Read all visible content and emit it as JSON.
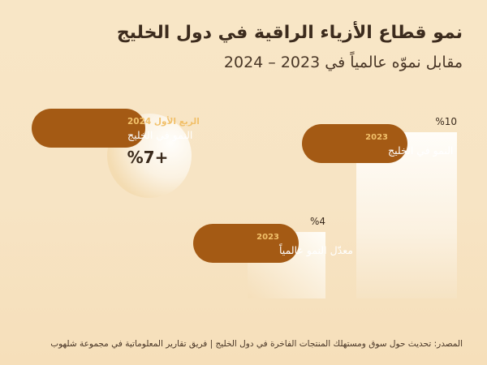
{
  "title": "نمو قطاع الأزياء الراقية في دول الخليج",
  "subtitle": "مقابل نموّه عالمياً في 2023 – 2024",
  "source": "المصدر: تحديث حول سوق ومستهلك المنتجات الفاخرة في دول الخليج | فريق تقارير المعلوماتية في مجموعة شلهوب",
  "chart_data": {
    "type": "bar",
    "title": "نمو قطاع الأزياء الراقية في دول الخليج",
    "subtitle": "مقابل نموّه عالمياً في 2023 – 2024",
    "unit": "%",
    "ylim": [
      0,
      10
    ],
    "bars": [
      {
        "period": "2023",
        "label": "النمو في الخليج",
        "value": 10,
        "value_label": "%10"
      },
      {
        "period": "2023",
        "label": "معدّل النمو عالمياً",
        "value": 4,
        "value_label": "%4"
      }
    ],
    "highlight": {
      "period": "الربع الأول 2024",
      "label": "النمو في الخليج",
      "value": 7,
      "value_label": "%7+"
    }
  },
  "colors": {
    "pill": "#a45a14",
    "pill_period": "#f1c06a",
    "pill_text": "#ffffff",
    "value_text": "#3a2a1c"
  }
}
